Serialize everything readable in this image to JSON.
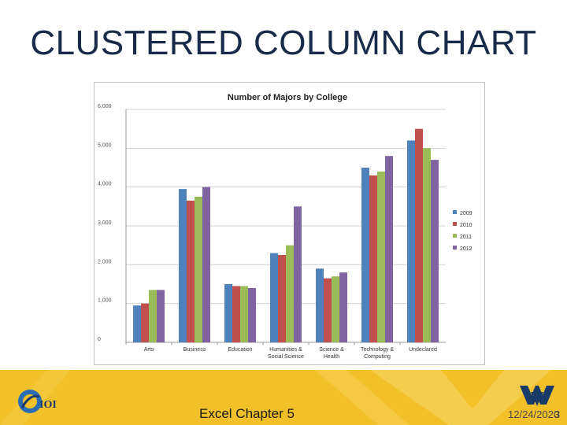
{
  "slide": {
    "title": "CLUSTERED COLUMN CHART",
    "footer_text": "Excel Chapter 5",
    "date": "12/24/2020",
    "page": "3"
  },
  "colors": {
    "footer_bg": "#f2c029",
    "series": [
      "#4f81bd",
      "#c0504d",
      "#9bbb59",
      "#8064a2"
    ]
  },
  "chart_data": {
    "type": "bar",
    "title": "Number of Majors by College",
    "xlabel": "",
    "ylabel": "",
    "ylim": [
      0,
      6000
    ],
    "yticks": [
      "0",
      "1,000",
      "2,000",
      "3,000",
      "4,000",
      "5,000",
      "6,000"
    ],
    "ytick_values": [
      0,
      1000,
      2000,
      3000,
      4000,
      5000,
      6000
    ],
    "categories": [
      [
        "Arts"
      ],
      [
        "Business"
      ],
      [
        "Education"
      ],
      [
        "Humanities &",
        "Social Science"
      ],
      [
        "Science &",
        "Health"
      ],
      [
        "Technology &",
        "Computing"
      ],
      [
        "Undeclared"
      ]
    ],
    "series": [
      {
        "name": "2009",
        "values": [
          950,
          3950,
          1500,
          2300,
          1900,
          4500,
          5200
        ]
      },
      {
        "name": "2010",
        "values": [
          1000,
          3650,
          1450,
          2250,
          1650,
          4300,
          5500
        ]
      },
      {
        "name": "2011",
        "values": [
          1350,
          3750,
          1450,
          2500,
          1700,
          4400,
          5000
        ]
      },
      {
        "name": "2012",
        "values": [
          1350,
          4000,
          1400,
          3500,
          1800,
          4800,
          4700
        ]
      }
    ],
    "grid": true,
    "legend": "right"
  }
}
